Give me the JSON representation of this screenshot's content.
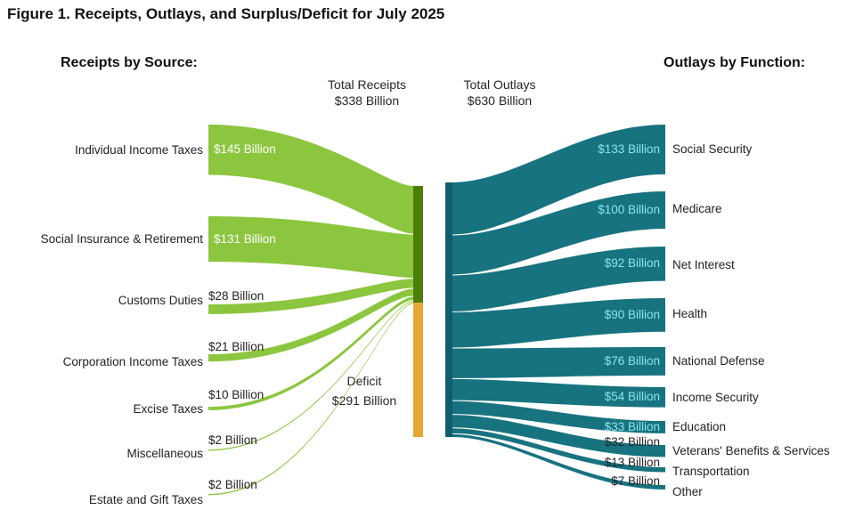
{
  "figure": {
    "title": "Figure 1. Receipts, Outlays, and Surplus/Deficit for July 2025",
    "receipts_header": "Receipts by Source:",
    "outlays_header": "Outlays by Function:",
    "total_receipts_label": "Total Receipts",
    "total_receipts_value": "$338 Billion",
    "total_outlays_label": "Total Outlays",
    "total_outlays_value": "$630 Billion",
    "deficit_label": "Deficit",
    "deficit_value": "$291 Billion"
  },
  "chart_data": {
    "type": "sankey",
    "unit": "billions of USD",
    "totals": {
      "receipts": 338,
      "outlays": 630,
      "deficit": 291
    },
    "receipts": [
      {
        "label": "Individual Income Taxes",
        "value": 145,
        "value_label": "$145 Billion"
      },
      {
        "label": "Social Insurance & Retirement",
        "value": 131,
        "value_label": "$131 Billion"
      },
      {
        "label": "Customs Duties",
        "value": 28,
        "value_label": "$28 Billion"
      },
      {
        "label": "Corporation Income Taxes",
        "value": 21,
        "value_label": "$21 Billion"
      },
      {
        "label": "Excise Taxes",
        "value": 10,
        "value_label": "$10 Billion"
      },
      {
        "label": "Miscellaneous",
        "value": 2,
        "value_label": "$2 Billion"
      },
      {
        "label": "Estate and Gift Taxes",
        "value": 2,
        "value_label": "$2 Billion"
      }
    ],
    "outlays": [
      {
        "label": "Social Security",
        "value": 133,
        "value_label": "$133 Billion"
      },
      {
        "label": "Medicare",
        "value": 100,
        "value_label": "$100 Billion"
      },
      {
        "label": "Net Interest",
        "value": 92,
        "value_label": "$92 Billion"
      },
      {
        "label": "Health",
        "value": 90,
        "value_label": "$90 Billion"
      },
      {
        "label": "National Defense",
        "value": 76,
        "value_label": "$76 Billion"
      },
      {
        "label": "Income Security",
        "value": 54,
        "value_label": "$54 Billion"
      },
      {
        "label": "Education",
        "value": 33,
        "value_label": "$33 Billion"
      },
      {
        "label": "Veterans' Benefits & Services",
        "value": 32,
        "value_label": "$32 Billion"
      },
      {
        "label": "Transportation",
        "value": 13,
        "value_label": "$13 Billion"
      },
      {
        "label": "Other",
        "value": 7,
        "value_label": "$7 Billion"
      }
    ],
    "colors": {
      "receipt_flow": "#8CC63F",
      "receipts_node": "#4E7D0A",
      "deficit_node": "#E6A832",
      "outlay_flow": "#17737F",
      "outlays_node": "#0F5E6D",
      "inside_value_left": "#FFFFFF",
      "inside_value_right": "#8BE4EF",
      "text": "#222222"
    }
  }
}
